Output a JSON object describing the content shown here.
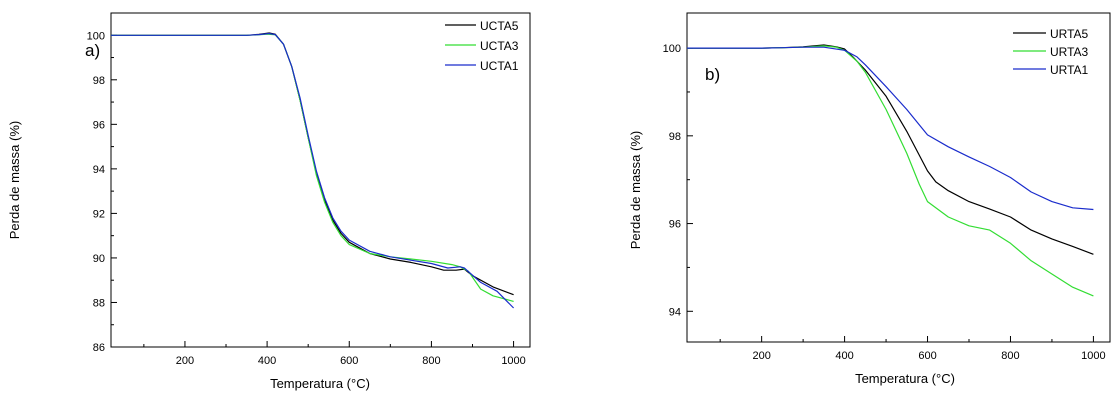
{
  "chart_data": [
    {
      "type": "line",
      "panel_label": "a)",
      "xlabel": "Temperatura (°C)",
      "ylabel": "Perda de massa (%)",
      "xlim": [
        20,
        1040
      ],
      "ylim": [
        86,
        101
      ],
      "x_ticks": [
        200,
        400,
        600,
        800,
        1000
      ],
      "y_ticks": [
        86,
        88,
        90,
        92,
        94,
        96,
        98,
        100
      ],
      "legend_position": "top-right",
      "grid": false,
      "series": [
        {
          "name": "UCTA5",
          "color": "#000000",
          "points": [
            [
              20,
              100
            ],
            [
              350,
              100
            ],
            [
              380,
              100.04
            ],
            [
              405,
              100.1
            ],
            [
              420,
              100.05
            ],
            [
              440,
              99.6
            ],
            [
              460,
              98.6
            ],
            [
              480,
              97.1
            ],
            [
              500,
              95.4
            ],
            [
              520,
              93.8
            ],
            [
              540,
              92.6
            ],
            [
              560,
              91.7
            ],
            [
              580,
              91.1
            ],
            [
              600,
              90.7
            ],
            [
              650,
              90.2
            ],
            [
              700,
              89.95
            ],
            [
              750,
              89.8
            ],
            [
              800,
              89.6
            ],
            [
              830,
              89.45
            ],
            [
              860,
              89.45
            ],
            [
              880,
              89.5
            ],
            [
              900,
              89.2
            ],
            [
              950,
              88.7
            ],
            [
              1000,
              88.35
            ]
          ]
        },
        {
          "name": "UCTA3",
          "color": "#33dd33",
          "points": [
            [
              20,
              100
            ],
            [
              350,
              100
            ],
            [
              380,
              100.02
            ],
            [
              400,
              100.05
            ],
            [
              420,
              100.02
            ],
            [
              440,
              99.6
            ],
            [
              460,
              98.6
            ],
            [
              480,
              97.1
            ],
            [
              500,
              95.4
            ],
            [
              520,
              93.7
            ],
            [
              540,
              92.5
            ],
            [
              560,
              91.6
            ],
            [
              580,
              91.0
            ],
            [
              600,
              90.6
            ],
            [
              650,
              90.2
            ],
            [
              700,
              90.05
            ],
            [
              750,
              89.95
            ],
            [
              800,
              89.85
            ],
            [
              850,
              89.7
            ],
            [
              870,
              89.6
            ],
            [
              890,
              89.4
            ],
            [
              920,
              88.6
            ],
            [
              950,
              88.3
            ],
            [
              1000,
              88.05
            ]
          ]
        },
        {
          "name": "UCTA1",
          "color": "#1a2ccc",
          "points": [
            [
              20,
              100
            ],
            [
              350,
              100
            ],
            [
              380,
              100.03
            ],
            [
              405,
              100.08
            ],
            [
              420,
              100.03
            ],
            [
              440,
              99.6
            ],
            [
              460,
              98.6
            ],
            [
              480,
              97.2
            ],
            [
              500,
              95.5
            ],
            [
              520,
              93.9
            ],
            [
              540,
              92.7
            ],
            [
              560,
              91.8
            ],
            [
              580,
              91.2
            ],
            [
              600,
              90.8
            ],
            [
              650,
              90.3
            ],
            [
              700,
              90.05
            ],
            [
              750,
              89.9
            ],
            [
              800,
              89.75
            ],
            [
              840,
              89.55
            ],
            [
              870,
              89.6
            ],
            [
              880,
              89.55
            ],
            [
              920,
              88.9
            ],
            [
              960,
              88.5
            ],
            [
              1000,
              87.75
            ]
          ]
        }
      ]
    },
    {
      "type": "line",
      "panel_label": "b)",
      "xlabel": "Temperatura (°C)",
      "ylabel": "Perda de massa (%)",
      "xlim": [
        20,
        1040
      ],
      "ylim": [
        93.3,
        100.8
      ],
      "x_ticks": [
        200,
        400,
        600,
        800,
        1000
      ],
      "y_ticks": [
        94,
        96,
        98,
        100
      ],
      "legend_position": "top-right",
      "grid": false,
      "series": [
        {
          "name": "URTA5",
          "color": "#000000",
          "points": [
            [
              20,
              100
            ],
            [
              200,
              100
            ],
            [
              250,
              100.01
            ],
            [
              300,
              100.03
            ],
            [
              350,
              100.07
            ],
            [
              380,
              100.03
            ],
            [
              400,
              99.98
            ],
            [
              420,
              99.8
            ],
            [
              450,
              99.5
            ],
            [
              500,
              98.9
            ],
            [
              550,
              98.1
            ],
            [
              600,
              97.2
            ],
            [
              620,
              96.95
            ],
            [
              650,
              96.75
            ],
            [
              700,
              96.5
            ],
            [
              750,
              96.33
            ],
            [
              800,
              96.15
            ],
            [
              850,
              95.85
            ],
            [
              900,
              95.65
            ],
            [
              950,
              95.48
            ],
            [
              1000,
              95.3
            ]
          ]
        },
        {
          "name": "URTA3",
          "color": "#33dd33",
          "points": [
            [
              20,
              100
            ],
            [
              200,
              100
            ],
            [
              250,
              100.01
            ],
            [
              300,
              100.02
            ],
            [
              350,
              100.05
            ],
            [
              380,
              100.02
            ],
            [
              400,
              99.95
            ],
            [
              430,
              99.7
            ],
            [
              450,
              99.45
            ],
            [
              500,
              98.6
            ],
            [
              550,
              97.6
            ],
            [
              580,
              96.9
            ],
            [
              600,
              96.5
            ],
            [
              650,
              96.15
            ],
            [
              700,
              95.95
            ],
            [
              750,
              95.85
            ],
            [
              800,
              95.55
            ],
            [
              850,
              95.15
            ],
            [
              900,
              94.85
            ],
            [
              950,
              94.55
            ],
            [
              1000,
              94.35
            ]
          ]
        },
        {
          "name": "URTA1",
          "color": "#1a2ccc",
          "points": [
            [
              20,
              100
            ],
            [
              200,
              100
            ],
            [
              250,
              100.01
            ],
            [
              300,
              100.02
            ],
            [
              350,
              100.02
            ],
            [
              400,
              99.95
            ],
            [
              430,
              99.8
            ],
            [
              450,
              99.62
            ],
            [
              500,
              99.12
            ],
            [
              550,
              98.6
            ],
            [
              600,
              98.02
            ],
            [
              650,
              97.75
            ],
            [
              700,
              97.52
            ],
            [
              750,
              97.3
            ],
            [
              800,
              97.05
            ],
            [
              850,
              96.72
            ],
            [
              900,
              96.5
            ],
            [
              950,
              96.36
            ],
            [
              1000,
              96.32
            ]
          ]
        }
      ]
    }
  ]
}
